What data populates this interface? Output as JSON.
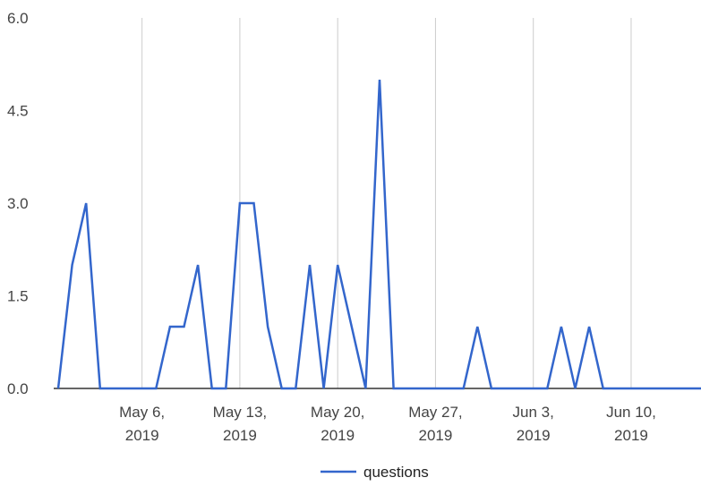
{
  "chart_data": {
    "type": "line",
    "x_type": "date",
    "grid": "vertical",
    "legend_position": "bottom",
    "ylim": [
      0,
      6
    ],
    "y_ticks": [
      "0.0",
      "1.5",
      "3.0",
      "4.5",
      "6.0"
    ],
    "y_tick_values": [
      0,
      1.5,
      3.0,
      4.5,
      6.0
    ],
    "x_ticks": [
      {
        "date": "2019-05-06",
        "line1": "May 6,",
        "line2": "2019"
      },
      {
        "date": "2019-05-13",
        "line1": "May 13,",
        "line2": "2019"
      },
      {
        "date": "2019-05-20",
        "line1": "May 20,",
        "line2": "2019"
      },
      {
        "date": "2019-05-27",
        "line1": "May 27,",
        "line2": "2019"
      },
      {
        "date": "2019-06-03",
        "line1": "Jun 3,",
        "line2": "2019"
      },
      {
        "date": "2019-06-10",
        "line1": "Jun 10,",
        "line2": "2019"
      }
    ],
    "xlim": [
      "2019-04-30",
      "2019-06-15"
    ],
    "series": [
      {
        "name": "questions",
        "color": "#3366cc",
        "points": [
          [
            "2019-04-30",
            0
          ],
          [
            "2019-05-01",
            2
          ],
          [
            "2019-05-02",
            3
          ],
          [
            "2019-05-03",
            0
          ],
          [
            "2019-05-04",
            0
          ],
          [
            "2019-05-05",
            0
          ],
          [
            "2019-05-06",
            0
          ],
          [
            "2019-05-07",
            0
          ],
          [
            "2019-05-08",
            1
          ],
          [
            "2019-05-09",
            1
          ],
          [
            "2019-05-10",
            2
          ],
          [
            "2019-05-11",
            0
          ],
          [
            "2019-05-12",
            0
          ],
          [
            "2019-05-13",
            3
          ],
          [
            "2019-05-14",
            3
          ],
          [
            "2019-05-15",
            1
          ],
          [
            "2019-05-16",
            0
          ],
          [
            "2019-05-17",
            0
          ],
          [
            "2019-05-18",
            2
          ],
          [
            "2019-05-19",
            0
          ],
          [
            "2019-05-20",
            2
          ],
          [
            "2019-05-21",
            1
          ],
          [
            "2019-05-22",
            0
          ],
          [
            "2019-05-23",
            5
          ],
          [
            "2019-05-24",
            0
          ],
          [
            "2019-05-25",
            0
          ],
          [
            "2019-05-26",
            0
          ],
          [
            "2019-05-27",
            0
          ],
          [
            "2019-05-28",
            0
          ],
          [
            "2019-05-29",
            0
          ],
          [
            "2019-05-30",
            1
          ],
          [
            "2019-05-31",
            0
          ],
          [
            "2019-06-01",
            0
          ],
          [
            "2019-06-02",
            0
          ],
          [
            "2019-06-03",
            0
          ],
          [
            "2019-06-04",
            0
          ],
          [
            "2019-06-05",
            1
          ],
          [
            "2019-06-06",
            0
          ],
          [
            "2019-06-07",
            1
          ],
          [
            "2019-06-08",
            0
          ],
          [
            "2019-06-09",
            0
          ],
          [
            "2019-06-10",
            0
          ],
          [
            "2019-06-11",
            0
          ],
          [
            "2019-06-12",
            0
          ],
          [
            "2019-06-13",
            0
          ],
          [
            "2019-06-14",
            0
          ],
          [
            "2019-06-15",
            0
          ]
        ]
      }
    ]
  }
}
